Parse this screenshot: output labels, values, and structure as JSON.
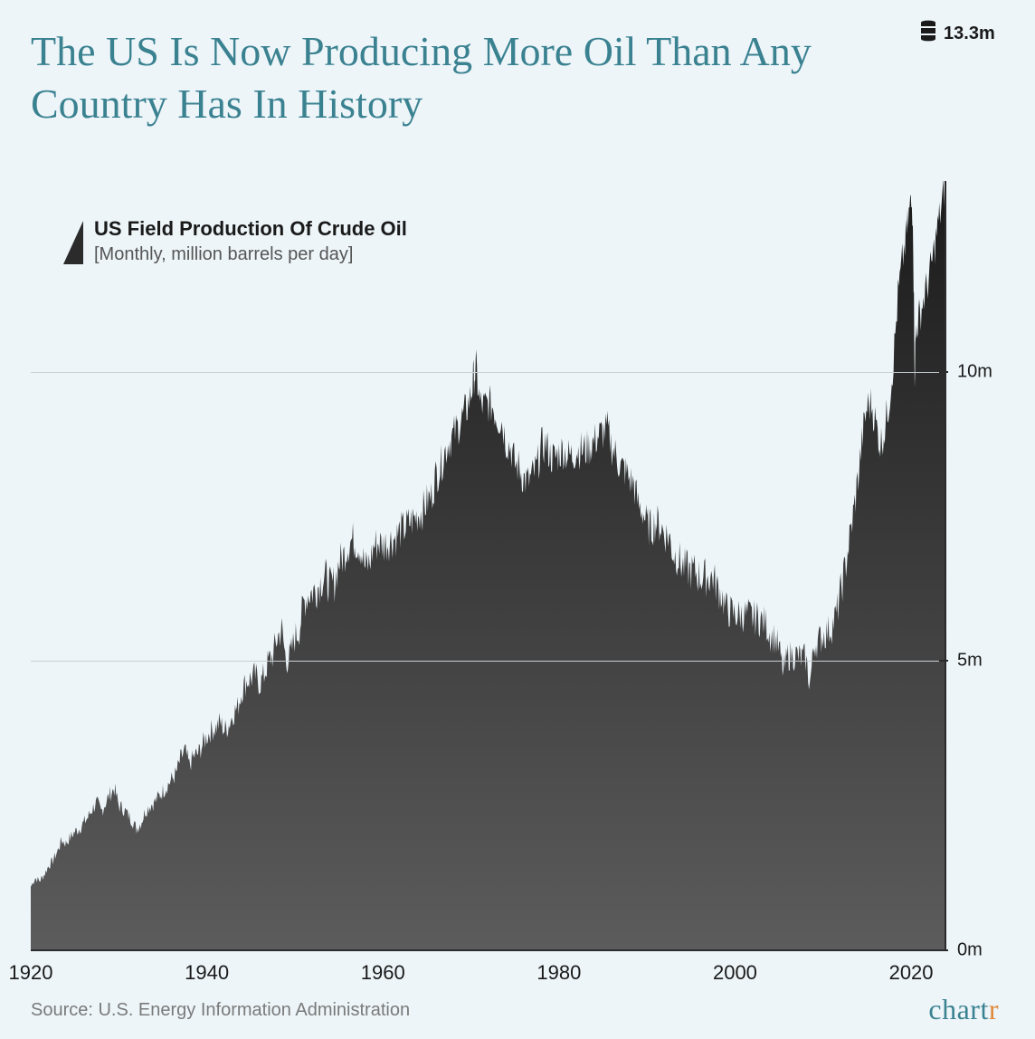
{
  "title": "The US Is Now Producing More Oil Than Any Country Has In History",
  "legend": {
    "heading": "US Field Production Of Crude Oil",
    "sub": "[Monthly, million barrels per day]"
  },
  "peak": {
    "label": "13.3m",
    "value": 13.3,
    "x": 2023.9
  },
  "source": "Source: U.S. Energy Information Administration",
  "brand": {
    "main": "chart",
    "accent": "r"
  },
  "chart": {
    "type": "area",
    "background_color": "#edf5f9",
    "title_color": "#3b8291",
    "title_fontsize": 46,
    "fill_gradient_top": "#1a1a1a",
    "fill_gradient_bottom": "#5c5c5c",
    "axis_color": "#2b2b2b",
    "grid_color": "#c7cfd3",
    "label_color": "#1a1a1a",
    "label_fontsize": 20,
    "xlim": [
      1920,
      2024
    ],
    "ylim": [
      0,
      13.3
    ],
    "xticks": [
      1920,
      1940,
      1960,
      1980,
      2000,
      2020
    ],
    "yticks": [
      {
        "value": 0,
        "label": "0m"
      },
      {
        "value": 5,
        "label": "5m"
      },
      {
        "value": 10,
        "label": "10m"
      }
    ],
    "grid_y": [
      5,
      10
    ],
    "series": [
      {
        "x": 1920.0,
        "y": 1.1
      },
      {
        "x": 1920.5,
        "y": 1.25
      },
      {
        "x": 1921.0,
        "y": 1.2
      },
      {
        "x": 1921.5,
        "y": 1.3
      },
      {
        "x": 1922.0,
        "y": 1.45
      },
      {
        "x": 1922.5,
        "y": 1.55
      },
      {
        "x": 1923.0,
        "y": 1.7
      },
      {
        "x": 1923.5,
        "y": 1.9
      },
      {
        "x": 1924.0,
        "y": 1.85
      },
      {
        "x": 1924.5,
        "y": 1.95
      },
      {
        "x": 1925.0,
        "y": 2.05
      },
      {
        "x": 1925.5,
        "y": 2.1
      },
      {
        "x": 1926.0,
        "y": 2.2
      },
      {
        "x": 1926.5,
        "y": 2.3
      },
      {
        "x": 1927.0,
        "y": 2.45
      },
      {
        "x": 1927.5,
        "y": 2.55
      },
      {
        "x": 1928.0,
        "y": 2.4
      },
      {
        "x": 1928.5,
        "y": 2.55
      },
      {
        "x": 1929.0,
        "y": 2.7
      },
      {
        "x": 1929.5,
        "y": 2.8
      },
      {
        "x": 1930.0,
        "y": 2.5
      },
      {
        "x": 1930.5,
        "y": 2.45
      },
      {
        "x": 1931.0,
        "y": 2.35
      },
      {
        "x": 1931.5,
        "y": 2.25
      },
      {
        "x": 1932.0,
        "y": 2.1
      },
      {
        "x": 1932.5,
        "y": 2.2
      },
      {
        "x": 1933.0,
        "y": 2.4
      },
      {
        "x": 1933.5,
        "y": 2.5
      },
      {
        "x": 1934.0,
        "y": 2.55
      },
      {
        "x": 1934.5,
        "y": 2.65
      },
      {
        "x": 1935.0,
        "y": 2.75
      },
      {
        "x": 1935.5,
        "y": 2.85
      },
      {
        "x": 1936.0,
        "y": 2.95
      },
      {
        "x": 1936.5,
        "y": 3.05
      },
      {
        "x": 1937.0,
        "y": 3.3
      },
      {
        "x": 1937.5,
        "y": 3.45
      },
      {
        "x": 1938.0,
        "y": 3.2
      },
      {
        "x": 1938.5,
        "y": 3.35
      },
      {
        "x": 1939.0,
        "y": 3.4
      },
      {
        "x": 1939.5,
        "y": 3.55
      },
      {
        "x": 1940.0,
        "y": 3.7
      },
      {
        "x": 1940.5,
        "y": 3.8
      },
      {
        "x": 1941.0,
        "y": 3.85
      },
      {
        "x": 1941.5,
        "y": 3.95
      },
      {
        "x": 1942.0,
        "y": 3.8
      },
      {
        "x": 1942.5,
        "y": 3.9
      },
      {
        "x": 1943.0,
        "y": 4.1
      },
      {
        "x": 1943.5,
        "y": 4.2
      },
      {
        "x": 1944.0,
        "y": 4.5
      },
      {
        "x": 1944.5,
        "y": 4.65
      },
      {
        "x": 1945.0,
        "y": 4.7
      },
      {
        "x": 1945.5,
        "y": 4.75
      },
      {
        "x": 1946.0,
        "y": 4.6
      },
      {
        "x": 1946.5,
        "y": 4.75
      },
      {
        "x": 1947.0,
        "y": 5.0
      },
      {
        "x": 1947.5,
        "y": 5.1
      },
      {
        "x": 1948.0,
        "y": 5.4
      },
      {
        "x": 1948.5,
        "y": 5.55
      },
      {
        "x": 1949.0,
        "y": 5.0
      },
      {
        "x": 1949.5,
        "y": 5.1
      },
      {
        "x": 1950.0,
        "y": 5.4
      },
      {
        "x": 1950.5,
        "y": 5.55
      },
      {
        "x": 1951.0,
        "y": 6.0
      },
      {
        "x": 1951.5,
        "y": 6.15
      },
      {
        "x": 1952.0,
        "y": 6.2
      },
      {
        "x": 1952.5,
        "y": 6.25
      },
      {
        "x": 1953.0,
        "y": 6.4
      },
      {
        "x": 1953.5,
        "y": 6.45
      },
      {
        "x": 1954.0,
        "y": 6.3
      },
      {
        "x": 1954.5,
        "y": 6.35
      },
      {
        "x": 1955.0,
        "y": 6.7
      },
      {
        "x": 1955.5,
        "y": 6.8
      },
      {
        "x": 1956.0,
        "y": 7.0
      },
      {
        "x": 1956.5,
        "y": 7.1
      },
      {
        "x": 1957.0,
        "y": 7.05
      },
      {
        "x": 1957.5,
        "y": 6.95
      },
      {
        "x": 1958.0,
        "y": 6.6
      },
      {
        "x": 1958.5,
        "y": 6.7
      },
      {
        "x": 1959.0,
        "y": 7.0
      },
      {
        "x": 1959.5,
        "y": 7.05
      },
      {
        "x": 1960.0,
        "y": 7.0
      },
      {
        "x": 1960.5,
        "y": 7.05
      },
      {
        "x": 1961.0,
        "y": 7.1
      },
      {
        "x": 1961.5,
        "y": 7.15
      },
      {
        "x": 1962.0,
        "y": 7.25
      },
      {
        "x": 1962.5,
        "y": 7.3
      },
      {
        "x": 1963.0,
        "y": 7.4
      },
      {
        "x": 1963.5,
        "y": 7.45
      },
      {
        "x": 1964.0,
        "y": 7.55
      },
      {
        "x": 1964.5,
        "y": 7.6
      },
      {
        "x": 1965.0,
        "y": 7.75
      },
      {
        "x": 1965.5,
        "y": 7.85
      },
      {
        "x": 1966.0,
        "y": 8.2
      },
      {
        "x": 1966.5,
        "y": 8.35
      },
      {
        "x": 1967.0,
        "y": 8.6
      },
      {
        "x": 1967.5,
        "y": 8.8
      },
      {
        "x": 1968.0,
        "y": 8.9
      },
      {
        "x": 1968.5,
        "y": 9.05
      },
      {
        "x": 1969.0,
        "y": 9.2
      },
      {
        "x": 1969.5,
        "y": 9.35
      },
      {
        "x": 1970.0,
        "y": 9.6
      },
      {
        "x": 1970.3,
        "y": 9.9
      },
      {
        "x": 1970.6,
        "y": 10.05
      },
      {
        "x": 1971.0,
        "y": 9.45
      },
      {
        "x": 1971.5,
        "y": 9.4
      },
      {
        "x": 1972.0,
        "y": 9.45
      },
      {
        "x": 1972.5,
        "y": 9.4
      },
      {
        "x": 1973.0,
        "y": 9.2
      },
      {
        "x": 1973.5,
        "y": 9.15
      },
      {
        "x": 1974.0,
        "y": 8.8
      },
      {
        "x": 1974.5,
        "y": 8.7
      },
      {
        "x": 1975.0,
        "y": 8.4
      },
      {
        "x": 1975.5,
        "y": 8.35
      },
      {
        "x": 1976.0,
        "y": 8.15
      },
      {
        "x": 1976.5,
        "y": 8.1
      },
      {
        "x": 1977.0,
        "y": 8.2
      },
      {
        "x": 1977.5,
        "y": 8.35
      },
      {
        "x": 1978.0,
        "y": 8.7
      },
      {
        "x": 1978.5,
        "y": 8.75
      },
      {
        "x": 1979.0,
        "y": 8.55
      },
      {
        "x": 1979.5,
        "y": 8.5
      },
      {
        "x": 1980.0,
        "y": 8.6
      },
      {
        "x": 1980.5,
        "y": 8.65
      },
      {
        "x": 1981.0,
        "y": 8.55
      },
      {
        "x": 1981.5,
        "y": 8.55
      },
      {
        "x": 1982.0,
        "y": 8.65
      },
      {
        "x": 1982.5,
        "y": 8.65
      },
      {
        "x": 1983.0,
        "y": 8.65
      },
      {
        "x": 1983.5,
        "y": 8.7
      },
      {
        "x": 1984.0,
        "y": 8.8
      },
      {
        "x": 1984.5,
        "y": 8.9
      },
      {
        "x": 1985.0,
        "y": 8.95
      },
      {
        "x": 1985.5,
        "y": 9.0
      },
      {
        "x": 1986.0,
        "y": 8.7
      },
      {
        "x": 1986.5,
        "y": 8.55
      },
      {
        "x": 1987.0,
        "y": 8.35
      },
      {
        "x": 1987.5,
        "y": 8.3
      },
      {
        "x": 1988.0,
        "y": 8.15
      },
      {
        "x": 1988.5,
        "y": 8.05
      },
      {
        "x": 1989.0,
        "y": 7.7
      },
      {
        "x": 1989.5,
        "y": 7.6
      },
      {
        "x": 1990.0,
        "y": 7.35
      },
      {
        "x": 1990.5,
        "y": 7.3
      },
      {
        "x": 1991.0,
        "y": 7.4
      },
      {
        "x": 1991.5,
        "y": 7.35
      },
      {
        "x": 1992.0,
        "y": 7.2
      },
      {
        "x": 1992.5,
        "y": 7.15
      },
      {
        "x": 1993.0,
        "y": 6.85
      },
      {
        "x": 1993.5,
        "y": 6.8
      },
      {
        "x": 1994.0,
        "y": 6.65
      },
      {
        "x": 1994.5,
        "y": 6.6
      },
      {
        "x": 1995.0,
        "y": 6.55
      },
      {
        "x": 1995.5,
        "y": 6.55
      },
      {
        "x": 1996.0,
        "y": 6.45
      },
      {
        "x": 1996.5,
        "y": 6.45
      },
      {
        "x": 1997.0,
        "y": 6.45
      },
      {
        "x": 1997.5,
        "y": 6.45
      },
      {
        "x": 1998.0,
        "y": 6.25
      },
      {
        "x": 1998.5,
        "y": 6.15
      },
      {
        "x": 1999.0,
        "y": 5.9
      },
      {
        "x": 1999.5,
        "y": 5.85
      },
      {
        "x": 2000.0,
        "y": 5.8
      },
      {
        "x": 2000.5,
        "y": 5.8
      },
      {
        "x": 2001.0,
        "y": 5.8
      },
      {
        "x": 2001.5,
        "y": 5.8
      },
      {
        "x": 2002.0,
        "y": 5.75
      },
      {
        "x": 2002.5,
        "y": 5.75
      },
      {
        "x": 2003.0,
        "y": 5.7
      },
      {
        "x": 2003.5,
        "y": 5.65
      },
      {
        "x": 2004.0,
        "y": 5.45
      },
      {
        "x": 2004.5,
        "y": 5.4
      },
      {
        "x": 2005.0,
        "y": 5.2
      },
      {
        "x": 2005.5,
        "y": 4.8
      },
      {
        "x": 2006.0,
        "y": 5.1
      },
      {
        "x": 2006.5,
        "y": 5.1
      },
      {
        "x": 2007.0,
        "y": 5.1
      },
      {
        "x": 2007.5,
        "y": 5.05
      },
      {
        "x": 2008.0,
        "y": 5.05
      },
      {
        "x": 2008.5,
        "y": 4.6
      },
      {
        "x": 2009.0,
        "y": 5.3
      },
      {
        "x": 2009.5,
        "y": 5.35
      },
      {
        "x": 2010.0,
        "y": 5.45
      },
      {
        "x": 2010.5,
        "y": 5.5
      },
      {
        "x": 2011.0,
        "y": 5.6
      },
      {
        "x": 2011.5,
        "y": 5.8
      },
      {
        "x": 2012.0,
        "y": 6.2
      },
      {
        "x": 2012.5,
        "y": 6.6
      },
      {
        "x": 2013.0,
        "y": 7.1
      },
      {
        "x": 2013.5,
        "y": 7.6
      },
      {
        "x": 2014.0,
        "y": 8.2
      },
      {
        "x": 2014.5,
        "y": 8.9
      },
      {
        "x": 2015.0,
        "y": 9.4
      },
      {
        "x": 2015.5,
        "y": 9.45
      },
      {
        "x": 2016.0,
        "y": 9.1
      },
      {
        "x": 2016.5,
        "y": 8.75
      },
      {
        "x": 2017.0,
        "y": 9.0
      },
      {
        "x": 2017.5,
        "y": 9.5
      },
      {
        "x": 2018.0,
        "y": 10.2
      },
      {
        "x": 2018.5,
        "y": 11.3
      },
      {
        "x": 2019.0,
        "y": 11.9
      },
      {
        "x": 2019.5,
        "y": 12.4
      },
      {
        "x": 2019.9,
        "y": 12.9
      },
      {
        "x": 2020.2,
        "y": 12.8
      },
      {
        "x": 2020.4,
        "y": 10.0
      },
      {
        "x": 2020.6,
        "y": 10.8
      },
      {
        "x": 2021.0,
        "y": 11.0
      },
      {
        "x": 2021.5,
        "y": 11.3
      },
      {
        "x": 2022.0,
        "y": 11.6
      },
      {
        "x": 2022.5,
        "y": 12.0
      },
      {
        "x": 2023.0,
        "y": 12.5
      },
      {
        "x": 2023.5,
        "y": 12.9
      },
      {
        "x": 2023.9,
        "y": 13.3
      }
    ]
  }
}
